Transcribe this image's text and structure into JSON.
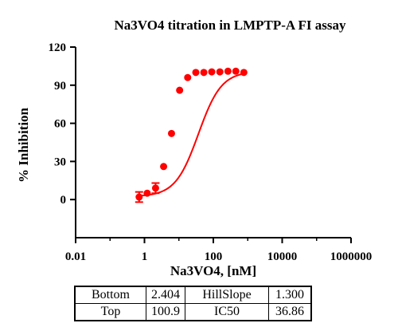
{
  "chart_data": {
    "type": "scatter",
    "title": "Na3VO4 titration in LMPTP-A FI assay",
    "xlabel": "Na3VO4,  [nM]",
    "ylabel": "% Inhibition",
    "x_scale": "log",
    "xlim": [
      0.01,
      1000000
    ],
    "ylim": [
      -30,
      120
    ],
    "x_ticks": [
      0.01,
      1,
      100,
      10000,
      1000000
    ],
    "x_tick_labels": [
      "0.01",
      "1",
      "100",
      "10000",
      "1000000"
    ],
    "y_ticks": [
      0,
      30,
      60,
      90,
      120
    ],
    "y_tick_labels": [
      "0",
      "30",
      "60",
      "90",
      "120"
    ],
    "grid": false,
    "series": [
      {
        "color": "#ff0000",
        "x": [
          0.7,
          1.2,
          2.1,
          3.6,
          6.1,
          10.5,
          18,
          31,
          53,
          90,
          155,
          266,
          450,
          770
        ],
        "y": [
          2,
          5,
          9,
          26,
          52,
          86,
          96,
          100,
          100,
          100.5,
          100.5,
          101,
          101,
          100
        ],
        "error": [
          4,
          0,
          4,
          0,
          0,
          0,
          0,
          0,
          0,
          0,
          0,
          0,
          0,
          0
        ]
      }
    ],
    "fit": {
      "model": "four-parameter logistic",
      "bottom": 2.404,
      "top": 100.9,
      "hill_slope": 1.3,
      "ic50": 36.86,
      "x_range": [
        0.7,
        770
      ]
    }
  },
  "params_table": {
    "rows": [
      [
        "Bottom",
        "2.404",
        "HillSlope",
        "1.300"
      ],
      [
        "Top",
        "100.9",
        "IC50",
        "36.86"
      ]
    ]
  }
}
